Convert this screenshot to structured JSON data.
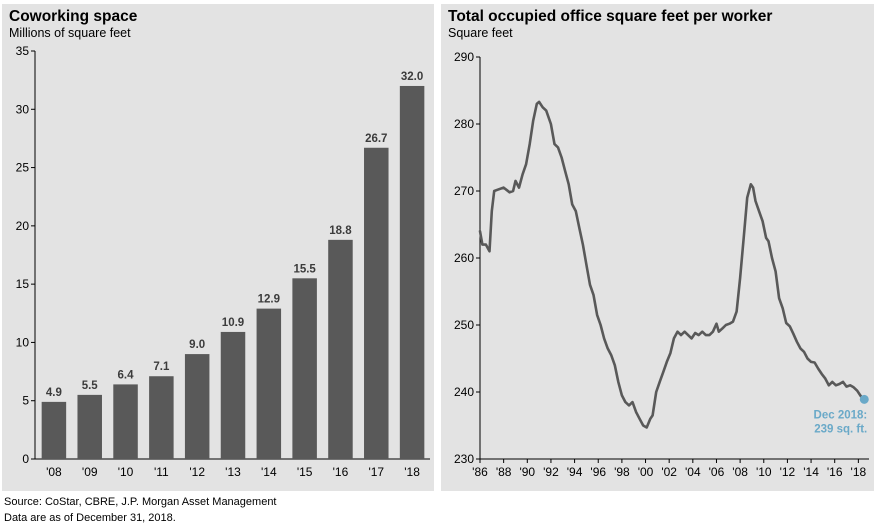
{
  "footnotes": {
    "source": "Source: CoStar, CBRE, J.P. Morgan Asset Management",
    "date": "Data are as of December 31, 2018."
  },
  "colors": {
    "bars": "#595959",
    "line": "#595959",
    "marker": "#6aa9c8",
    "panel_bg": "#e3e3e3"
  },
  "chart_data": [
    {
      "type": "bar",
      "title": "Coworking space",
      "subtitle": "Millions of square feet",
      "categories": [
        "'08",
        "'09",
        "'10",
        "'11",
        "'12",
        "'13",
        "'14",
        "'15",
        "'16",
        "'17",
        "'18"
      ],
      "values": [
        4.9,
        5.5,
        6.4,
        7.1,
        9.0,
        10.9,
        12.9,
        15.5,
        18.8,
        26.7,
        32.0
      ],
      "data_labels": [
        "4.9",
        "5.5",
        "6.4",
        "7.1",
        "9.0",
        "10.9",
        "12.9",
        "15.5",
        "18.8",
        "26.7",
        "32.0"
      ],
      "ylim": [
        0,
        35
      ],
      "yticks": [
        0,
        5,
        10,
        15,
        20,
        25,
        30,
        35
      ],
      "grid": false
    },
    {
      "type": "line",
      "title": "Total occupied office square feet per worker",
      "subtitle": "Square feet",
      "xlim": [
        1986,
        2018.9
      ],
      "ylim": [
        230,
        290
      ],
      "yticks": [
        230,
        240,
        250,
        260,
        270,
        280,
        290
      ],
      "xticks": [
        1986,
        1988,
        1990,
        1992,
        1994,
        1996,
        1998,
        2000,
        2002,
        2004,
        2006,
        2008,
        2010,
        2012,
        2014,
        2016,
        2018
      ],
      "xtick_labels": [
        "'86",
        "'88",
        "'90",
        "'92",
        "'94",
        "'96",
        "'98",
        "'00",
        "'02",
        "'04",
        "'06",
        "'08",
        "'10",
        "'12",
        "'14",
        "'16",
        "'18"
      ],
      "grid": false,
      "series": [
        {
          "x": [
            1986,
            1986.2,
            1986.5,
            1986.8,
            1987.0,
            1987.2,
            1987.5,
            1988.0,
            1988.5,
            1988.8,
            1989.0,
            1989.3,
            1989.6,
            1989.9,
            1990.2,
            1990.5,
            1990.8,
            1991.0,
            1991.3,
            1991.6,
            1992.0,
            1992.3,
            1992.6,
            1992.9,
            1993.2,
            1993.5,
            1993.8,
            1994.1,
            1994.4,
            1994.7,
            1995.0,
            1995.3,
            1995.6,
            1995.9,
            1996.2,
            1996.5,
            1996.8,
            1997.1,
            1997.4,
            1997.7,
            1998.0,
            1998.3,
            1998.6,
            1998.9,
            1999.2,
            1999.5,
            1999.8,
            2000.1,
            2000.4,
            2000.6,
            2000.9,
            2001.2,
            2001.5,
            2001.8,
            2002.1,
            2002.4,
            2002.7,
            2003.0,
            2003.3,
            2003.6,
            2003.9,
            2004.2,
            2004.5,
            2004.8,
            2005.1,
            2005.4,
            2005.7,
            2006.0,
            2006.2,
            2006.5,
            2006.8,
            2007.1,
            2007.4,
            2007.7,
            2008.0,
            2008.3,
            2008.6,
            2008.9,
            2009.1,
            2009.3,
            2009.6,
            2009.9,
            2010.2,
            2010.4,
            2010.7,
            2011.0,
            2011.3,
            2011.6,
            2011.9,
            2012.2,
            2012.5,
            2012.8,
            2013.1,
            2013.4,
            2013.7,
            2014.0,
            2014.3,
            2014.6,
            2014.9,
            2015.2,
            2015.5,
            2015.8,
            2016.1,
            2016.4,
            2016.7,
            2017.0,
            2017.3,
            2017.6,
            2017.9,
            2018.2,
            2018.5
          ],
          "y": [
            264,
            262,
            262,
            261,
            267,
            270,
            270.2,
            270.5,
            269.8,
            270,
            271.5,
            270.5,
            272.5,
            274,
            277,
            280.5,
            283,
            283.3,
            282.5,
            282,
            280,
            277,
            276.5,
            275,
            273,
            271,
            268,
            267,
            264.5,
            262,
            259,
            256,
            254.5,
            251.5,
            250,
            248,
            246.5,
            245.5,
            244,
            241.5,
            239.5,
            238.5,
            238,
            238.5,
            237,
            236,
            235,
            234.7,
            236,
            236.5,
            240,
            241.5,
            243,
            244.5,
            245.8,
            248,
            249,
            248.5,
            249,
            248.5,
            248,
            248.8,
            248.5,
            249,
            248.5,
            248.5,
            249,
            250.2,
            249,
            249.5,
            250,
            250.2,
            250.5,
            252,
            257,
            263,
            269,
            271,
            270.5,
            268.5,
            267,
            265.5,
            263,
            262.5,
            260,
            258,
            254,
            252.5,
            250.3,
            249.8,
            248.7,
            247.5,
            246.5,
            246,
            245,
            244.5,
            244.4,
            243.5,
            242.7,
            242,
            241,
            241.5,
            241,
            241.2,
            241.5,
            240.8,
            241,
            240.7,
            240.2,
            239.4,
            238.9
          ]
        }
      ],
      "annotation": {
        "lines": [
          "Dec 2018:",
          "239 sq. ft."
        ],
        "x": 2018.5,
        "y": 238.9
      }
    }
  ]
}
